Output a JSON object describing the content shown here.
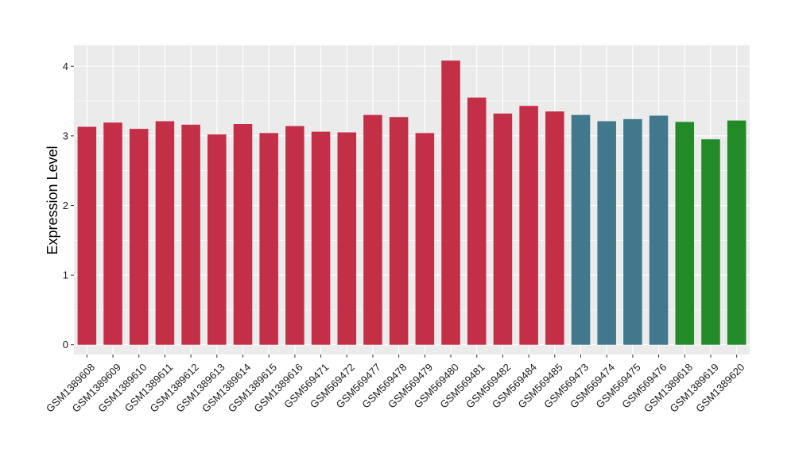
{
  "chart_data": {
    "type": "bar",
    "title": "",
    "xlabel": "",
    "ylabel": "Expression Level",
    "ylim": [
      -0.14,
      4.3
    ],
    "yticks": [
      0,
      1,
      2,
      3,
      4
    ],
    "grid": true,
    "legend": "none",
    "panel_background": "#ebebeb",
    "grid_color": "#ffffff",
    "categories": [
      "GSM1389608",
      "GSM1389609",
      "GSM1389610",
      "GSM1389611",
      "GSM1389612",
      "GSM1389613",
      "GSM1389614",
      "GSM1389615",
      "GSM1389616",
      "GSM569471",
      "GSM569472",
      "GSM569477",
      "GSM569478",
      "GSM569479",
      "GSM569480",
      "GSM569481",
      "GSM569482",
      "GSM569484",
      "GSM569485",
      "GSM569473",
      "GSM569474",
      "GSM569475",
      "GSM569476",
      "GSM1389618",
      "GSM1389619",
      "GSM1389620"
    ],
    "values": [
      3.13,
      3.19,
      3.1,
      3.21,
      3.16,
      3.02,
      3.17,
      3.04,
      3.14,
      3.06,
      3.05,
      3.3,
      3.27,
      3.04,
      4.08,
      3.55,
      3.32,
      3.43,
      3.35,
      3.3,
      3.21,
      3.24,
      3.29,
      3.2,
      2.95,
      3.22
    ],
    "colors": [
      "#c42f48",
      "#c42f48",
      "#c42f48",
      "#c42f48",
      "#c42f48",
      "#c42f48",
      "#c42f48",
      "#c42f48",
      "#c42f48",
      "#c42f48",
      "#c42f48",
      "#c42f48",
      "#c42f48",
      "#c42f48",
      "#c42f48",
      "#c42f48",
      "#c42f48",
      "#c42f48",
      "#c42f48",
      "#41788b",
      "#41788b",
      "#41788b",
      "#41788b",
      "#228b28",
      "#228b28",
      "#228b28"
    ]
  }
}
